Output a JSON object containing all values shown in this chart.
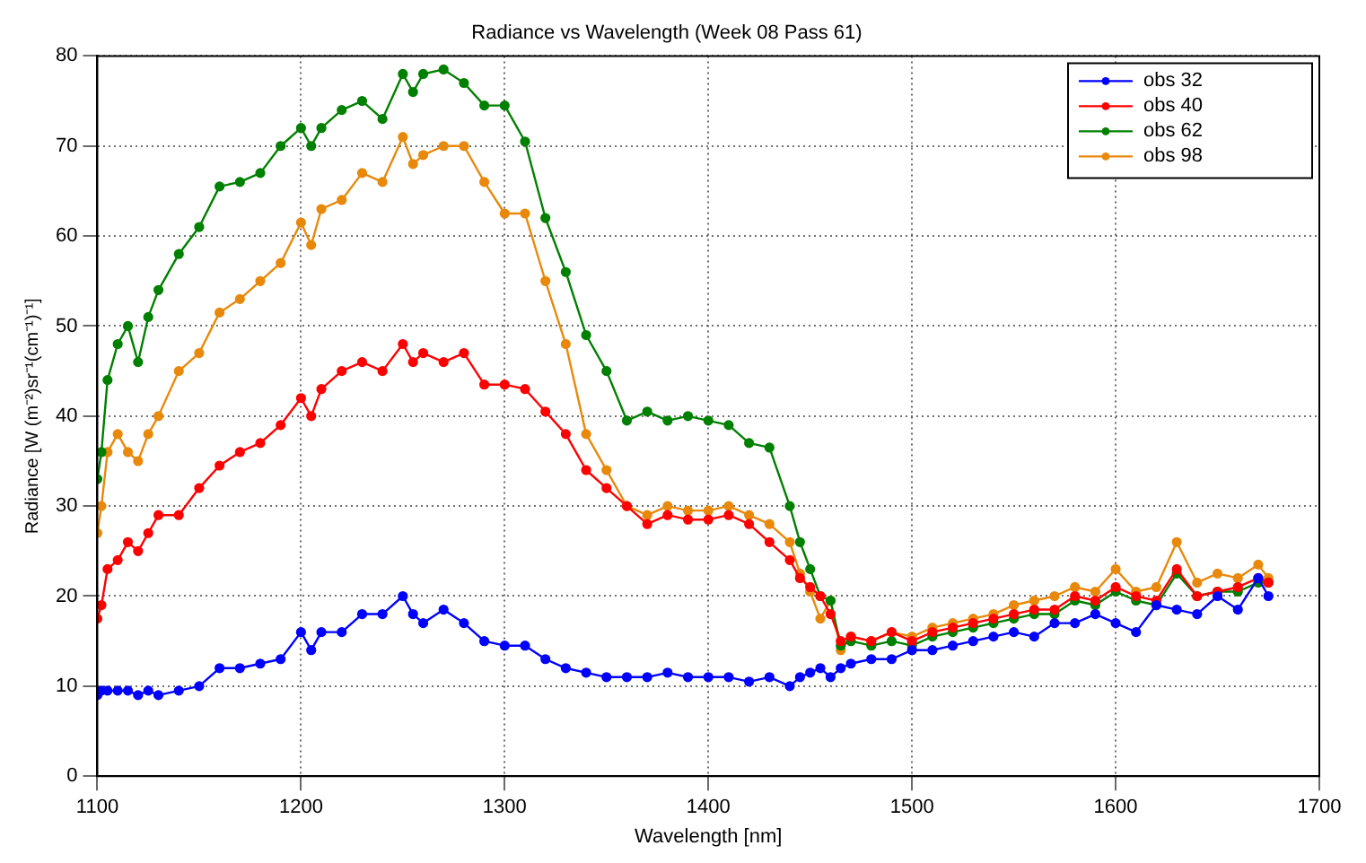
{
  "chart_data": {
    "type": "line",
    "title": "Radiance vs Wavelength (Week 08 Pass 61)",
    "xlabel": "Wavelength [nm]",
    "ylabel": "Radiance [W (m⁻²)sr⁻¹(cm⁻¹)⁻¹]",
    "x": [
      1100,
      1102,
      1105,
      1110,
      1115,
      1120,
      1125,
      1130,
      1140,
      1150,
      1160,
      1170,
      1180,
      1190,
      1200,
      1205,
      1210,
      1220,
      1230,
      1240,
      1250,
      1255,
      1260,
      1270,
      1280,
      1290,
      1300,
      1310,
      1320,
      1330,
      1340,
      1350,
      1360,
      1370,
      1380,
      1390,
      1400,
      1410,
      1420,
      1430,
      1440,
      1445,
      1450,
      1455,
      1460,
      1465,
      1470,
      1480,
      1490,
      1500,
      1510,
      1520,
      1530,
      1540,
      1550,
      1560,
      1570,
      1580,
      1590,
      1600,
      1610,
      1620,
      1630,
      1640,
      1650,
      1660,
      1670,
      1675
    ],
    "series": [
      {
        "name": "obs 32",
        "color": "#0000ff",
        "values": [
          9,
          9.5,
          9.5,
          9.5,
          9.5,
          9,
          9.5,
          9,
          9.5,
          10,
          12,
          12,
          12.5,
          13,
          16,
          14,
          16,
          16,
          18,
          18,
          20,
          18,
          17,
          18.5,
          17,
          15,
          14.5,
          14.5,
          13,
          12,
          11.5,
          11,
          11,
          11,
          11.5,
          11,
          11,
          11,
          10.5,
          11,
          10,
          11,
          11.5,
          12,
          11,
          12,
          12.5,
          13,
          13,
          14,
          14,
          14.5,
          15,
          15.5,
          16,
          15.5,
          17,
          17,
          18,
          17,
          16,
          19,
          18.5,
          18,
          20,
          18.5,
          22,
          20
        ]
      },
      {
        "name": "obs 40",
        "color": "#ff0000",
        "values": [
          17.5,
          19,
          23,
          24,
          26,
          25,
          27,
          29,
          29,
          32,
          34.5,
          36,
          37,
          39,
          42,
          40,
          43,
          45,
          46,
          45,
          48,
          46,
          47,
          46,
          47,
          43.5,
          43.5,
          43,
          40.5,
          38,
          34,
          32,
          30,
          28,
          29,
          28.5,
          28.5,
          29,
          28,
          26,
          24,
          22,
          21,
          20,
          18,
          15,
          15.5,
          15,
          16,
          15,
          16,
          16.5,
          17,
          17.5,
          18,
          18.5,
          18.5,
          20,
          19.5,
          21,
          20,
          19.5,
          23,
          20,
          20.5,
          21,
          22,
          21.5
        ]
      },
      {
        "name": "obs 62",
        "color": "#008000",
        "values": [
          33,
          36,
          44,
          48,
          50,
          46,
          51,
          54,
          58,
          61,
          65.5,
          66,
          67,
          70,
          72,
          70,
          72,
          74,
          75,
          73,
          78,
          76,
          78,
          78.5,
          77,
          74.5,
          74.5,
          70.5,
          62,
          56,
          49,
          45,
          39.5,
          40.5,
          39.5,
          40,
          39.5,
          39,
          37,
          36.5,
          30,
          26,
          23,
          20,
          19.5,
          14.5,
          15,
          14.5,
          15,
          14.5,
          15.5,
          16,
          16.5,
          17,
          17.5,
          18,
          18,
          19.5,
          19,
          20.5,
          19.5,
          19,
          22.5,
          20,
          20.5,
          20.5,
          21.5,
          21.5
        ]
      },
      {
        "name": "obs 98",
        "color": "#e8890c",
        "values": [
          27,
          30,
          36,
          38,
          36,
          35,
          38,
          40,
          45,
          47,
          51.5,
          53,
          55,
          57,
          61.5,
          59,
          63,
          64,
          67,
          66,
          71,
          68,
          69,
          70,
          70,
          66,
          62.5,
          62.5,
          55,
          48,
          38,
          34,
          30,
          29,
          30,
          29.5,
          29.5,
          30,
          29,
          28,
          26,
          22.5,
          20.5,
          17.5,
          19.5,
          14,
          15.5,
          15,
          16,
          15.5,
          16.5,
          17,
          17.5,
          18,
          19,
          19.5,
          20,
          21,
          20.5,
          23,
          20.5,
          21,
          26,
          21.5,
          22.5,
          22,
          23.5,
          22
        ]
      }
    ],
    "xlim": [
      1100,
      1700
    ],
    "xticks": [
      1100,
      1200,
      1300,
      1400,
      1500,
      1600,
      1700
    ],
    "ylim": [
      0,
      80
    ],
    "yticks": [
      0,
      10,
      20,
      30,
      40,
      50,
      60,
      70,
      80
    ],
    "grid": true,
    "legend": "top right",
    "marker": "circle",
    "line_style": "solid"
  }
}
